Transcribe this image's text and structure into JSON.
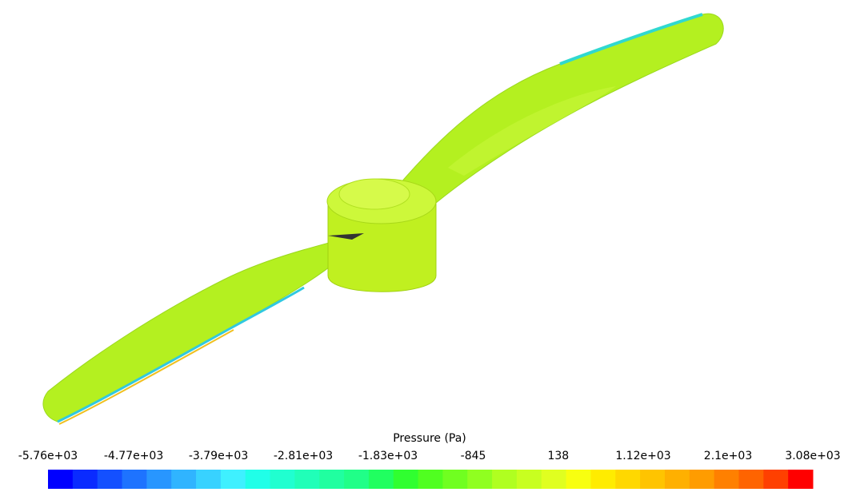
{
  "colorbar": {
    "title": "Pressure (Pa)",
    "lim": [
      -5760,
      3080
    ],
    "ticks": [
      {
        "value": -5760,
        "label": "-5.76e+03"
      },
      {
        "value": -4770,
        "label": "-4.77e+03"
      },
      {
        "value": -3790,
        "label": "-3.79e+03"
      },
      {
        "value": -2810,
        "label": "-2.81e+03"
      },
      {
        "value": -1830,
        "label": "-1.83e+03"
      },
      {
        "value": -845,
        "label": "-845"
      },
      {
        "value": 138,
        "label": "138"
      },
      {
        "value": 1120,
        "label": "1.12e+03"
      },
      {
        "value": 2100,
        "label": "2.1e+03"
      },
      {
        "value": 3080,
        "label": "3.08e+03"
      }
    ],
    "colors": [
      "#0000ff",
      "#0a2bff",
      "#1450ff",
      "#1e73ff",
      "#2896ff",
      "#30b4ff",
      "#38d2ff",
      "#3ff0ff",
      "#20ffe8",
      "#20ffd0",
      "#20ffb8",
      "#20ffa0",
      "#20ff88",
      "#20ff60",
      "#30ff30",
      "#50ff20",
      "#70ff20",
      "#90ff20",
      "#b0ff20",
      "#c8ff20",
      "#e0ff20",
      "#f8ff10",
      "#ffec00",
      "#ffd800",
      "#ffc400",
      "#ffb000",
      "#ff9c00",
      "#ff8000",
      "#ff6400",
      "#ff4000",
      "#ff0000"
    ]
  }
}
